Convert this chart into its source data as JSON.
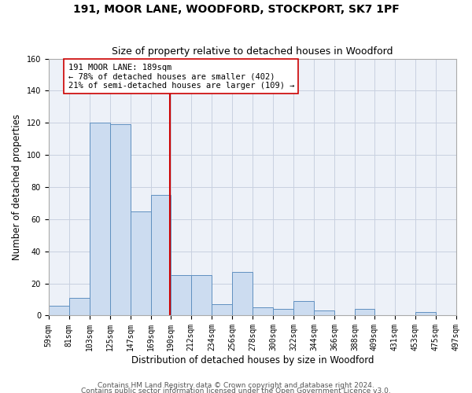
{
  "title1": "191, MOOR LANE, WOODFORD, STOCKPORT, SK7 1PF",
  "title2": "Size of property relative to detached houses in Woodford",
  "xlabel": "Distribution of detached houses by size in Woodford",
  "ylabel": "Number of detached properties",
  "bin_edges": [
    59,
    81,
    103,
    125,
    147,
    169,
    190,
    212,
    234,
    256,
    278,
    300,
    322,
    344,
    366,
    388,
    409,
    431,
    453,
    475,
    497
  ],
  "bar_values": [
    6,
    11,
    120,
    119,
    65,
    75,
    25,
    25,
    7,
    27,
    5,
    4,
    9,
    3,
    0,
    4,
    0,
    0,
    2,
    0
  ],
  "bar_color": "#ccdcf0",
  "bar_edge_color": "#6090c0",
  "property_size": 189,
  "vline_color": "#cc0000",
  "annotation_text": "191 MOOR LANE: 189sqm\n← 78% of detached houses are smaller (402)\n21% of semi-detached houses are larger (109) →",
  "annotation_box_color": "#ffffff",
  "annotation_box_edge": "#cc0000",
  "ylim": [
    0,
    160
  ],
  "yticks": [
    0,
    20,
    40,
    60,
    80,
    100,
    120,
    140,
    160
  ],
  "grid_color": "#c8d0e0",
  "background_color": "#edf1f8",
  "footer1": "Contains HM Land Registry data © Crown copyright and database right 2024.",
  "footer2": "Contains public sector information licensed under the Open Government Licence v3.0.",
  "title_fontsize": 10,
  "subtitle_fontsize": 9,
  "xlabel_fontsize": 8.5,
  "ylabel_fontsize": 8.5,
  "tick_fontsize": 7,
  "footer_fontsize": 6.5,
  "annot_fontsize": 7.5
}
